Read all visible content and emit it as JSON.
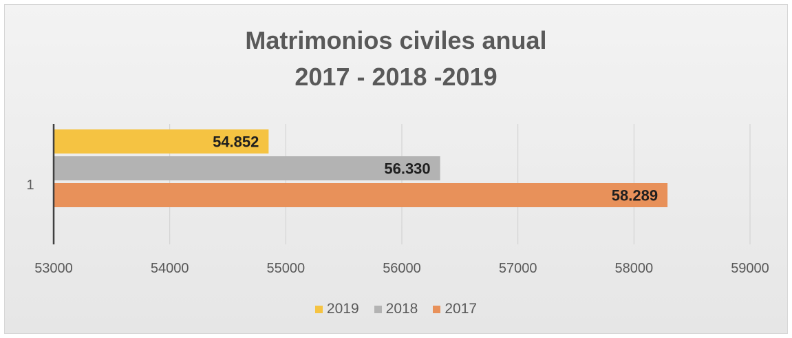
{
  "chart_data": {
    "type": "bar",
    "orientation": "horizontal",
    "title": "Matrimonios civiles anual",
    "subtitle": "2017 - 2018 -2019",
    "categories": [
      "1"
    ],
    "series": [
      {
        "name": "2019",
        "values": [
          54852
        ],
        "data_label": "54.852",
        "color": "#f5c342"
      },
      {
        "name": "2018",
        "values": [
          56330
        ],
        "data_label": "56.330",
        "color": "#b3b3b3"
      },
      {
        "name": "2017",
        "values": [
          58289
        ],
        "data_label": "58.289",
        "color": "#e8915a"
      }
    ],
    "xlim": [
      53000,
      59000
    ],
    "x_ticks": [
      "53000",
      "54000",
      "55000",
      "56000",
      "57000",
      "58000",
      "59000"
    ],
    "grid": true,
    "legend_position": "bottom"
  }
}
